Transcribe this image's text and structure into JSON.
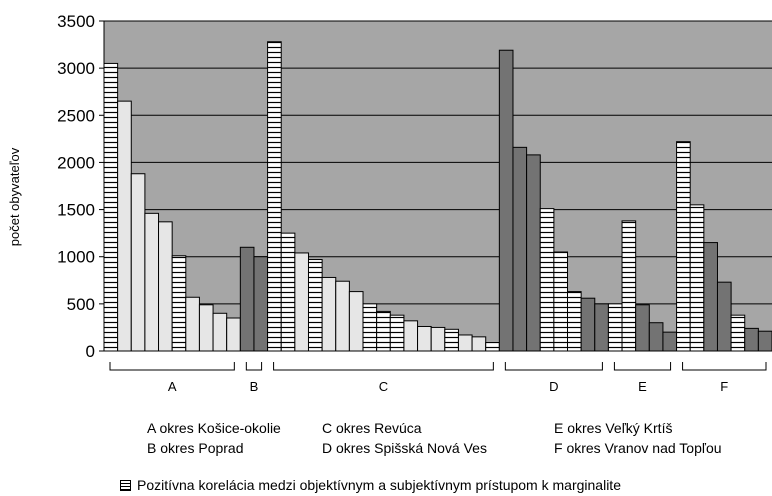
{
  "chart_data": {
    "type": "bar",
    "title": "",
    "xlabel": "",
    "ylabel": "počet obyvateľov",
    "ylim": [
      0,
      3500
    ],
    "yticks": [
      0,
      500,
      1000,
      1500,
      2000,
      2500,
      3000,
      3500
    ],
    "grid": true,
    "plot_background": "#a6a6a6",
    "colors": {
      "light": "#e6e6e6",
      "dark": "#737373",
      "hatch": "#ffffff",
      "hatch_line": "#000000"
    },
    "groups": [
      {
        "letter": "A",
        "name": "okres Košice-okolie",
        "values": [
          3050,
          2650,
          1880,
          1460,
          1370,
          1010,
          570,
          490,
          400,
          350
        ],
        "styles": [
          "hatch",
          "light",
          "light",
          "light",
          "light",
          "hatch",
          "light",
          "light",
          "light",
          "light"
        ]
      },
      {
        "letter": "B",
        "name": "okres Poprad",
        "values": [
          1100,
          1000
        ],
        "styles": [
          "dark",
          "dark"
        ]
      },
      {
        "letter": "C",
        "name": "okres Revúca",
        "values": [
          3280,
          1250,
          1040,
          970,
          780,
          740,
          630,
          500,
          420,
          380,
          320,
          260,
          250,
          230,
          170,
          150,
          90
        ],
        "styles": [
          "hatch",
          "hatch",
          "light",
          "hatch",
          "light",
          "light",
          "light",
          "hatch",
          "hatch",
          "hatch",
          "light",
          "light",
          "light",
          "hatch",
          "light",
          "light",
          "hatch"
        ]
      },
      {
        "letter": "D",
        "name": "okres Spišská Nová Ves",
        "values": [
          3190,
          2160,
          2080,
          1510,
          1050,
          630,
          560,
          500
        ],
        "styles": [
          "dark",
          "dark",
          "dark",
          "hatch",
          "hatch",
          "hatch",
          "dark",
          "dark"
        ]
      },
      {
        "letter": "E",
        "name": "okres Veľký Krtíš",
        "values": [
          500,
          1380,
          490,
          300,
          200
        ],
        "styles": [
          "hatch",
          "hatch",
          "dark",
          "dark",
          "dark"
        ]
      },
      {
        "letter": "F",
        "name": "okres Vranov nad Topľou",
        "values": [
          2220,
          1550,
          1150,
          730,
          380,
          240,
          210
        ],
        "styles": [
          "hatch",
          "hatch",
          "dark",
          "dark",
          "hatch",
          "dark",
          "dark"
        ]
      }
    ],
    "legend_pattern_text": "Pozitívna korelácia medzi objektívnym a subjektívnym prístupom k marginalite"
  },
  "legend": {
    "col1": [
      "A  okres Košice-okolie",
      "B  okres Poprad"
    ],
    "col2": [
      "C okres Revúca",
      "D okres Spišská Nová Ves"
    ],
    "col3": [
      "E okres Veľký Krtíš",
      "F okres Vranov nad Topľou"
    ],
    "pattern_text": "Pozitívna korelácia medzi objektívnym a subjektívnym prístupom k marginalite"
  }
}
